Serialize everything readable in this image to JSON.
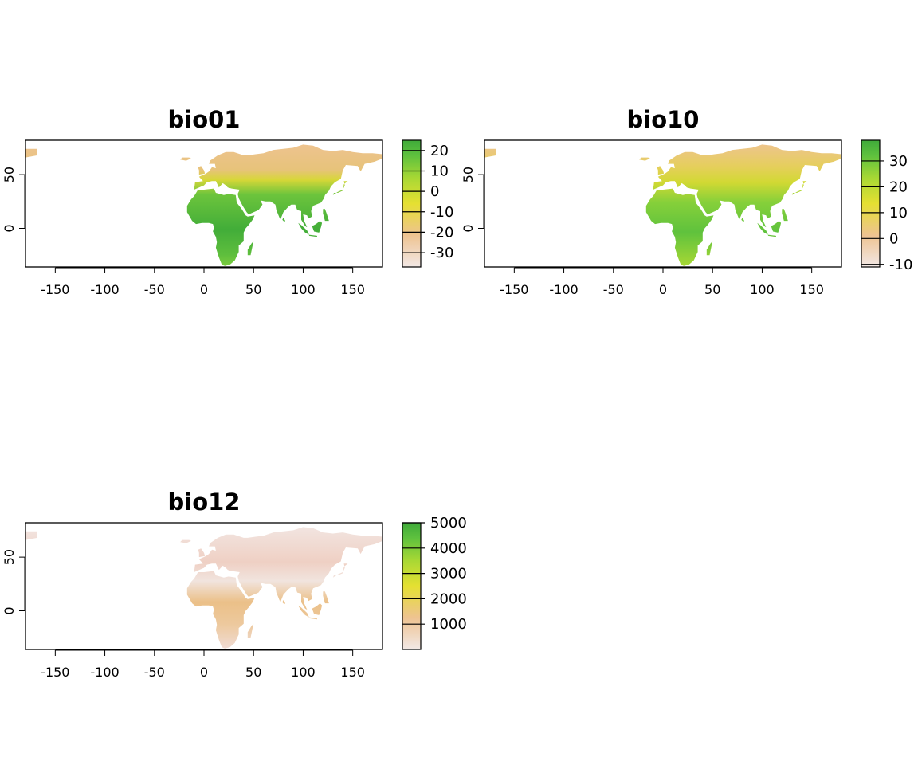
{
  "chart_data": [
    {
      "type": "heatmap",
      "title": "bio01",
      "xlim": [
        -180,
        180
      ],
      "ylim": [
        -36,
        82
      ],
      "x_ticks": [
        -150,
        -100,
        -50,
        0,
        50,
        100,
        150
      ],
      "y_ticks": [
        0,
        50
      ],
      "legend": {
        "placement": "right",
        "range": [
          -37,
          25
        ],
        "ticks": [
          20,
          10,
          0,
          -10,
          -20,
          -30
        ]
      },
      "colors": [
        "#f2e8e6",
        "#eec391",
        "#e5e032",
        "#a9d834",
        "#5ec13e",
        "#3faa3a"
      ]
    },
    {
      "type": "heatmap",
      "title": "bio10",
      "xlim": [
        -180,
        180
      ],
      "ylim": [
        -36,
        82
      ],
      "x_ticks": [
        -150,
        -100,
        -50,
        0,
        50,
        100,
        150
      ],
      "y_ticks": [
        0,
        50
      ],
      "legend": {
        "placement": "right",
        "range": [
          -11,
          38
        ],
        "ticks": [
          30,
          20,
          10,
          0,
          -10
        ]
      },
      "colors": [
        "#f2e8e6",
        "#eec391",
        "#e5e032",
        "#a9d834",
        "#5ec13e",
        "#3faa3a"
      ]
    },
    {
      "type": "heatmap",
      "title": "bio12",
      "xlim": [
        -180,
        180
      ],
      "ylim": [
        -36,
        82
      ],
      "x_ticks": [
        -150,
        -100,
        -50,
        0,
        50,
        100,
        150
      ],
      "y_ticks": [
        0,
        50
      ],
      "legend": {
        "placement": "right",
        "range": [
          0,
          5000
        ],
        "ticks": [
          5000,
          4000,
          3000,
          2000,
          1000
        ]
      },
      "colors": [
        "#f2e8e6",
        "#eec391",
        "#e5e032",
        "#a9d834",
        "#5ec13e",
        "#3faa3a"
      ]
    }
  ]
}
